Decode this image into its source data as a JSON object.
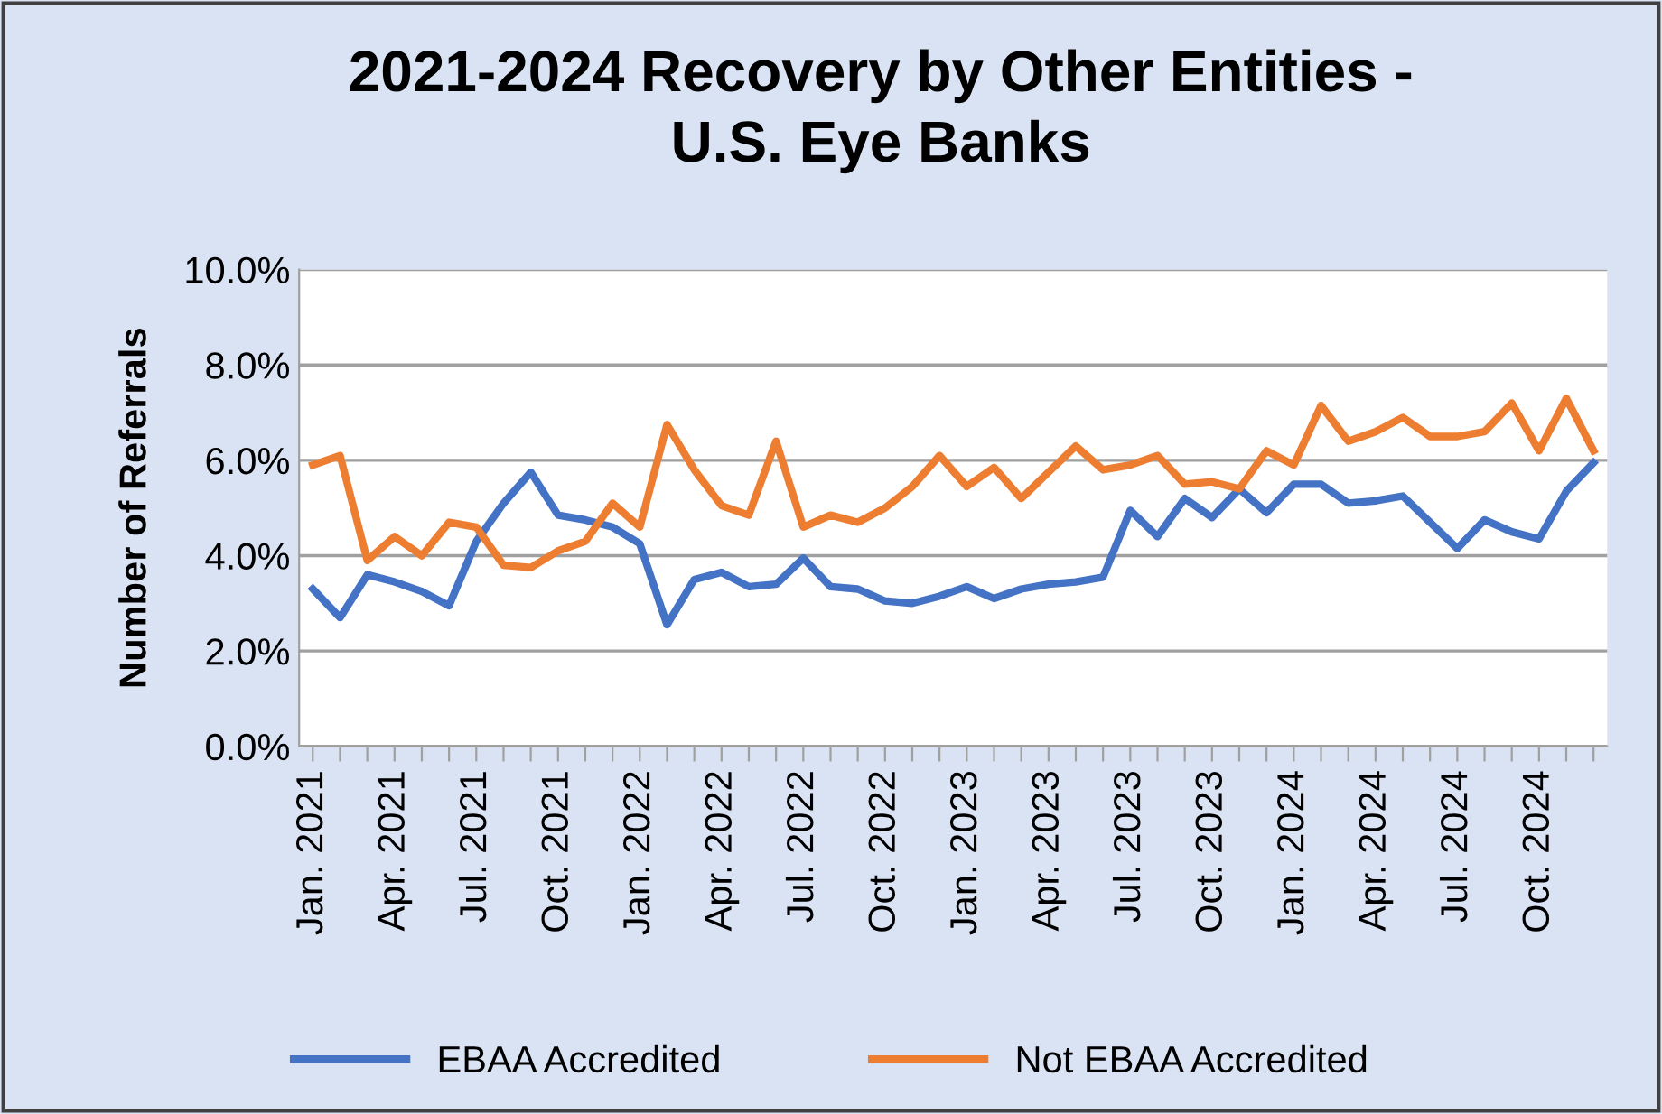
{
  "chart_data": {
    "type": "line",
    "title": "2021-2024 Recovery by Other Entities -\nU.S. Eye Banks",
    "ylabel": "Number of Referrals",
    "categories": [
      "Jan. 2021",
      null,
      null,
      "Apr. 2021",
      null,
      null,
      "Jul. 2021",
      null,
      null,
      "Oct. 2021",
      null,
      null,
      "Jan. 2022",
      null,
      null,
      "Apr. 2022",
      null,
      null,
      "Jul. 2022",
      null,
      null,
      "Oct. 2022",
      null,
      null,
      "Jan. 2023",
      null,
      null,
      "Apr. 2023",
      null,
      null,
      "Jul. 2023",
      null,
      null,
      "Oct. 2023",
      null,
      null,
      "Jan. 2024",
      null,
      null,
      "Apr. 2024",
      null,
      null,
      "Jul. 2024",
      null,
      null,
      "Oct. 2024",
      null,
      null
    ],
    "series": [
      {
        "name": "EBAA Accredited",
        "color": "#4472c4",
        "values": [
          3.3,
          2.7,
          3.6,
          3.45,
          3.25,
          2.95,
          4.3,
          5.1,
          5.75,
          4.85,
          4.75,
          4.6,
          4.25,
          2.55,
          3.5,
          3.65,
          3.35,
          3.4,
          3.95,
          3.35,
          3.3,
          3.05,
          3.0,
          3.15,
          3.35,
          3.1,
          3.3,
          3.4,
          3.45,
          3.55,
          4.95,
          4.4,
          5.2,
          4.8,
          5.4,
          4.9,
          5.5,
          5.5,
          5.1,
          5.15,
          5.25,
          4.7,
          4.15,
          4.75,
          4.5,
          4.35,
          5.35,
          5.95
        ]
      },
      {
        "name": "Not EBAA Accredited",
        "color": "#ed7d31",
        "values": [
          5.9,
          6.1,
          3.9,
          4.4,
          4.0,
          4.7,
          4.6,
          3.8,
          3.75,
          4.1,
          4.3,
          5.1,
          4.6,
          6.75,
          5.8,
          5.05,
          4.85,
          6.4,
          4.6,
          4.85,
          4.7,
          5.0,
          5.45,
          6.1,
          5.45,
          5.85,
          5.2,
          5.75,
          6.3,
          5.8,
          5.9,
          6.1,
          5.5,
          5.55,
          5.4,
          6.2,
          5.9,
          7.15,
          6.4,
          6.6,
          6.9,
          6.5,
          6.5,
          6.6,
          7.2,
          6.2,
          7.3,
          6.2
        ]
      }
    ],
    "ylim": [
      0,
      10
    ],
    "yticks": [
      {
        "value": 0,
        "label": "0.0%"
      },
      {
        "value": 2,
        "label": "2.0%"
      },
      {
        "value": 4,
        "label": "4.0%"
      },
      {
        "value": 6,
        "label": "6.0%"
      },
      {
        "value": 8,
        "label": "8.0%"
      },
      {
        "value": 10,
        "label": "10.0%"
      }
    ],
    "grid": "y",
    "legend": "bottom",
    "marker": "none",
    "line_style": "solid"
  }
}
